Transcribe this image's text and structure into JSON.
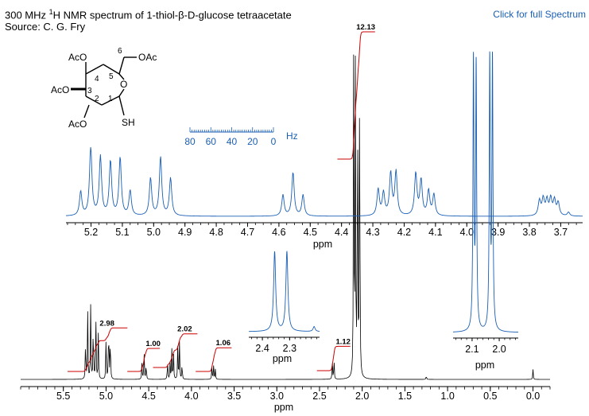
{
  "header": {
    "title_prefix": "300 MHz ",
    "title_sup": "1",
    "title_suffix": "H NMR spectrum of 1-thiol-β-D-glucose tetraacetate",
    "source": "Source: C. G. Fry",
    "link_label": "Click for full Spectrum"
  },
  "structure": {
    "labels": [
      "AcO",
      "AcO",
      "AcO",
      "OAc",
      "O",
      "SH"
    ],
    "numbers": [
      "1",
      "2",
      "3",
      "4",
      "5",
      "6"
    ]
  },
  "hz_scale": {
    "ticks": [
      "80",
      "60",
      "40",
      "20",
      "0"
    ],
    "unit": "Hz"
  },
  "colors": {
    "spectrum": "#000000",
    "expansion": "#1a5fb4",
    "integral": "#cc0000"
  },
  "chart_data": [
    {
      "id": "full",
      "type": "line",
      "xlabel": "ppm",
      "x_reversed": true,
      "xlim": [
        6.0,
        -0.2
      ],
      "ticks": [
        "5.5",
        "5.0",
        "4.5",
        "4.0",
        "3.5",
        "3.0",
        "2.5",
        "2.0",
        "1.5",
        "1.0",
        "0.5",
        "0.0"
      ],
      "tick_values": [
        5.5,
        5.0,
        4.5,
        4.0,
        3.5,
        3.0,
        2.5,
        2.0,
        1.5,
        1.0,
        0.5,
        0.0
      ],
      "peaks": [
        {
          "ppm": 5.24,
          "h": 0.12
        },
        {
          "ppm": 5.215,
          "h": 0.2
        },
        {
          "ppm": 5.18,
          "h": 0.22
        },
        {
          "ppm": 5.15,
          "h": 0.18
        },
        {
          "ppm": 5.12,
          "h": 0.21
        },
        {
          "ppm": 5.09,
          "h": 0.14
        },
        {
          "ppm": 5.0,
          "h": 0.12
        },
        {
          "ppm": 4.97,
          "h": 0.18
        },
        {
          "ppm": 4.95,
          "h": 0.14
        },
        {
          "ppm": 4.58,
          "h": 0.05
        },
        {
          "ppm": 4.555,
          "h": 0.09
        },
        {
          "ppm": 4.53,
          "h": 0.05
        },
        {
          "ppm": 4.28,
          "h": 0.06
        },
        {
          "ppm": 4.25,
          "h": 0.05
        },
        {
          "ppm": 4.23,
          "h": 0.09
        },
        {
          "ppm": 4.21,
          "h": 0.08
        },
        {
          "ppm": 4.16,
          "h": 0.1
        },
        {
          "ppm": 4.14,
          "h": 0.11
        },
        {
          "ppm": 4.11,
          "h": 0.05
        },
        {
          "ppm": 3.76,
          "h": 0.04
        },
        {
          "ppm": 3.74,
          "h": 0.04
        },
        {
          "ppm": 3.72,
          "h": 0.03
        },
        {
          "ppm": 2.35,
          "h": 0.05
        },
        {
          "ppm": 2.33,
          "h": 0.06
        },
        {
          "ppm": 2.1,
          "h": 1.0
        },
        {
          "ppm": 2.08,
          "h": 0.92
        },
        {
          "ppm": 2.055,
          "h": 0.93
        },
        {
          "ppm": 2.03,
          "h": 1.0
        },
        {
          "ppm": 1.25,
          "h": 0.012
        },
        {
          "ppm": 0.0,
          "h": 0.03
        }
      ],
      "integrals": [
        {
          "label": "2.98",
          "from": 5.32,
          "to": 4.88,
          "base": 0.0
        },
        {
          "label": "1.00",
          "from": 4.62,
          "to": 4.5,
          "base": 0.0
        },
        {
          "label": "2.02",
          "from": 4.32,
          "to": 4.06,
          "base": 0.0
        },
        {
          "label": "1.06",
          "from": 3.82,
          "to": 3.66,
          "base": 0.0
        },
        {
          "label": "1.12",
          "from": 2.4,
          "to": 2.27,
          "base": 0.0
        },
        {
          "label": "12.13",
          "from": 2.16,
          "to": 1.98,
          "base": 0.0
        }
      ]
    },
    {
      "id": "expansion-sugar",
      "type": "line",
      "xlabel": "ppm",
      "x_reversed": true,
      "xlim": [
        5.28,
        3.63
      ],
      "ticks": [
        "5.2",
        "5.1",
        "5.0",
        "4.9",
        "4.8",
        "4.7",
        "4.6",
        "4.5",
        "4.4",
        "4.3",
        "4.2",
        "4.1",
        "4.0",
        "3.9",
        "3.8",
        "3.7"
      ],
      "tick_values": [
        5.2,
        5.1,
        5.0,
        4.9,
        4.8,
        4.7,
        4.6,
        4.5,
        4.4,
        4.3,
        4.2,
        4.1,
        4.0,
        3.9,
        3.8,
        3.7
      ],
      "peaks": [
        {
          "ppm": 5.233,
          "h": 0.32
        },
        {
          "ppm": 5.201,
          "h": 0.93
        },
        {
          "ppm": 5.17,
          "h": 0.78
        },
        {
          "ppm": 5.138,
          "h": 0.72
        },
        {
          "ppm": 5.107,
          "h": 0.77
        },
        {
          "ppm": 5.075,
          "h": 0.33
        },
        {
          "ppm": 5.01,
          "h": 0.5
        },
        {
          "ppm": 4.978,
          "h": 0.78
        },
        {
          "ppm": 4.946,
          "h": 0.5
        },
        {
          "ppm": 4.587,
          "h": 0.28
        },
        {
          "ppm": 4.555,
          "h": 0.58
        },
        {
          "ppm": 4.523,
          "h": 0.28
        },
        {
          "ppm": 4.283,
          "h": 0.35
        },
        {
          "ppm": 4.266,
          "h": 0.3
        },
        {
          "ppm": 4.243,
          "h": 0.56
        },
        {
          "ppm": 4.226,
          "h": 0.58
        },
        {
          "ppm": 4.163,
          "h": 0.56
        },
        {
          "ppm": 4.146,
          "h": 0.47
        },
        {
          "ppm": 4.122,
          "h": 0.33
        },
        {
          "ppm": 4.105,
          "h": 0.28
        },
        {
          "ppm": 3.768,
          "h": 0.2
        },
        {
          "ppm": 3.756,
          "h": 0.22
        },
        {
          "ppm": 3.744,
          "h": 0.2
        },
        {
          "ppm": 3.732,
          "h": 0.22
        },
        {
          "ppm": 3.72,
          "h": 0.2
        },
        {
          "ppm": 3.708,
          "h": 0.17
        },
        {
          "ppm": 3.675,
          "h": 0.05
        }
      ]
    },
    {
      "id": "expansion-sh",
      "type": "line",
      "xlabel": "ppm",
      "x_reversed": true,
      "xlim": [
        2.45,
        2.19
      ],
      "ticks": [
        "2.4",
        "2.3"
      ],
      "tick_values": [
        2.4,
        2.3
      ],
      "peaks": [
        {
          "ppm": 2.355,
          "h": 0.97
        },
        {
          "ppm": 2.31,
          "h": 0.97
        },
        {
          "ppm": 2.21,
          "h": 0.06
        }
      ]
    },
    {
      "id": "expansion-acetate",
      "type": "line",
      "xlabel": "ppm",
      "x_reversed": true,
      "xlim": [
        2.17,
        1.93
      ],
      "ticks": [
        "2.1",
        "2.0"
      ],
      "tick_values": [
        2.1,
        2.0
      ],
      "peaks": [
        {
          "ppm": 2.095,
          "h": 0.95
        },
        {
          "ppm": 2.085,
          "h": 0.93
        },
        {
          "ppm": 2.035,
          "h": 0.95
        },
        {
          "ppm": 2.025,
          "h": 0.95
        }
      ]
    }
  ]
}
